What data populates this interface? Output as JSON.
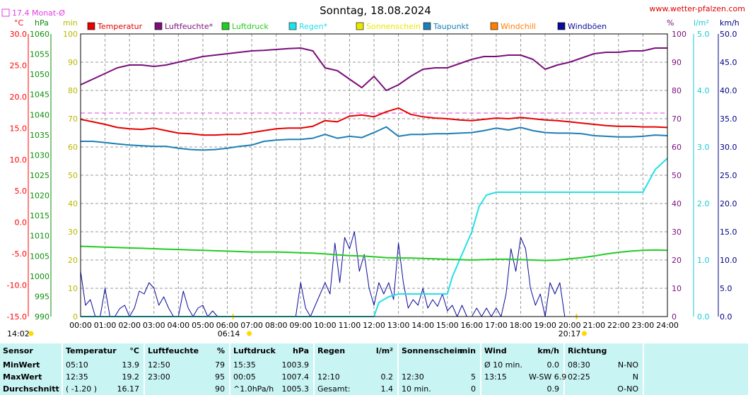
{
  "header": {
    "title": "Sonntag, 18.08.2024",
    "website": "www.wetter-pfalzen.com",
    "month_avg_label": "17.4 Monat-Ø"
  },
  "colors": {
    "temperature": "#e60000",
    "humidity": "#7a0f7a",
    "pressure": "#22cc22",
    "rain": "#22e0e8",
    "sunshine": "#e8e800",
    "dewpoint": "#1e7fb4",
    "windchill": "#ff7f00",
    "gusts": "#0a0a99",
    "month_avg_line": "#e040e0",
    "temp_axis": "#ff0000",
    "pressure_axis": "#0a8f0a",
    "sun_axis": "#b8b800",
    "humidity_axis": "#7a0f7a",
    "rain_axis": "#19c9d4",
    "wind_axis": "#000080",
    "stats_bg": "#c9f4f4"
  },
  "chart_data": {
    "type": "line",
    "x_unit": "time of day (hours)",
    "x_range": [
      0,
      24
    ],
    "x_ticks": [
      "00:00",
      "01:00",
      "02:00",
      "03:00",
      "04:00",
      "05:00",
      "06:00",
      "07:00",
      "08:00",
      "09:00",
      "10:00",
      "11:00",
      "12:00",
      "13:00",
      "14:00",
      "15:00",
      "16:00",
      "17:00",
      "18:00",
      "19:00",
      "20:00",
      "21:00",
      "22:00",
      "23:00",
      "24:00"
    ],
    "grid": true,
    "sunrise": "06:14",
    "sunset": "20:17",
    "current_time": "14:02",
    "axes": {
      "temperature": {
        "unit": "°C",
        "range": [
          -15,
          30
        ],
        "ticks": [
          "30.0",
          "25.0",
          "20.0",
          "15.0",
          "10.0",
          "5.0",
          "0.0",
          "-5.0",
          "-10.0",
          "-15.0"
        ]
      },
      "pressure": {
        "unit": "hPa",
        "range": [
          990,
          1060
        ],
        "ticks": [
          "1060",
          "1055",
          "1050",
          "1045",
          "1040",
          "1035",
          "1030",
          "1025",
          "1020",
          "1015",
          "1010",
          "1005",
          "1000",
          "995",
          "990"
        ]
      },
      "sunshine": {
        "unit": "min",
        "range": [
          0,
          100
        ],
        "ticks": [
          "100",
          "90",
          "80",
          "70",
          "60",
          "50",
          "40",
          "30",
          "20",
          "10",
          "0"
        ]
      },
      "humidity": {
        "unit": "%",
        "range": [
          0,
          100
        ],
        "ticks": [
          "100",
          "90",
          "80",
          "70",
          "60",
          "50",
          "40",
          "30",
          "20",
          "10",
          "0"
        ]
      },
      "rain": {
        "unit": "l/m²",
        "range": [
          0,
          5
        ],
        "ticks": [
          "5.0",
          "4.0",
          "3.0",
          "2.0",
          "1.0",
          "0.0"
        ]
      },
      "wind": {
        "unit": "km/h",
        "range": [
          0,
          50
        ],
        "ticks": [
          "50.0",
          "45.0",
          "40.0",
          "35.0",
          "30.0",
          "25.0",
          "20.0",
          "15.0",
          "10.0",
          "5.0",
          "0.0"
        ]
      }
    },
    "month_average_temperature": 17.4,
    "legend": [
      "Temperatur",
      "Luftfeuchte*",
      "Luftdruck",
      "Regen*",
      "Sonnenschein",
      "Taupunkt",
      "Windchill",
      "Windböen"
    ],
    "series": [
      {
        "name": "Temperatur",
        "axis": "temperature",
        "x": [
          0,
          0.5,
          1,
          1.5,
          2,
          2.5,
          3,
          3.5,
          4,
          4.5,
          5,
          5.5,
          6,
          6.5,
          7,
          7.5,
          8,
          8.5,
          9,
          9.5,
          10,
          10.5,
          11,
          11.5,
          12,
          12.5,
          13,
          13.5,
          14,
          14.5,
          15,
          15.5,
          16,
          16.5,
          17,
          17.5,
          18,
          18.5,
          19,
          19.5,
          20,
          20.5,
          21,
          21.5,
          22,
          22.5,
          23,
          23.5,
          24
        ],
        "y": [
          16.4,
          16.0,
          15.6,
          15.1,
          14.9,
          14.8,
          15.0,
          14.6,
          14.2,
          14.1,
          13.9,
          13.9,
          14.0,
          14.0,
          14.3,
          14.6,
          14.9,
          15.0,
          15.0,
          15.3,
          16.2,
          16.0,
          16.9,
          17.1,
          16.8,
          17.6,
          18.2,
          17.2,
          16.8,
          16.6,
          16.5,
          16.3,
          16.2,
          16.4,
          16.6,
          16.5,
          16.7,
          16.5,
          16.3,
          16.2,
          16.0,
          15.8,
          15.6,
          15.4,
          15.3,
          15.3,
          15.2,
          15.2,
          15.1
        ]
      },
      {
        "name": "Luftfeuchte*",
        "axis": "humidity",
        "x": [
          0,
          0.5,
          1,
          1.5,
          2,
          2.5,
          3,
          3.5,
          4,
          4.5,
          5,
          5.5,
          6,
          6.5,
          7,
          7.5,
          8,
          8.5,
          9,
          9.5,
          10,
          10.5,
          11,
          11.5,
          12,
          12.5,
          13,
          13.5,
          14,
          14.5,
          15,
          15.5,
          16,
          16.5,
          17,
          17.5,
          18,
          18.5,
          19,
          19.5,
          20,
          20.5,
          21,
          21.5,
          22,
          22.5,
          23,
          23.5,
          24
        ],
        "y": [
          82,
          84,
          86,
          88,
          89,
          89,
          88.5,
          89,
          90,
          91,
          92,
          92.5,
          93,
          93.5,
          94,
          94.2,
          94.5,
          94.8,
          95,
          94,
          88,
          87,
          84,
          81,
          85,
          80,
          82,
          85,
          87.5,
          88,
          88,
          89.5,
          91,
          92,
          92,
          92.5,
          92.5,
          91,
          87.5,
          89,
          90,
          91.5,
          93,
          93.5,
          93.5,
          94,
          94,
          95,
          95
        ]
      },
      {
        "name": "Luftdruck",
        "axis": "pressure",
        "x": [
          0,
          0.5,
          1,
          1.5,
          2,
          2.5,
          3,
          3.5,
          4,
          4.5,
          5,
          5.5,
          6,
          6.5,
          7,
          7.5,
          8,
          8.5,
          9,
          9.5,
          10,
          10.5,
          11,
          11.5,
          12,
          12.5,
          13,
          13.5,
          14,
          14.5,
          15,
          15.5,
          16,
          16.5,
          17,
          17.5,
          18,
          18.5,
          19,
          19.5,
          20,
          20.5,
          21,
          21.5,
          22,
          22.5,
          23,
          23.5,
          24
        ],
        "y": [
          1007.4,
          1007.3,
          1007.2,
          1007.1,
          1007.0,
          1006.9,
          1006.8,
          1006.7,
          1006.6,
          1006.5,
          1006.4,
          1006.3,
          1006.2,
          1006.1,
          1006.0,
          1006.0,
          1006.0,
          1005.9,
          1005.8,
          1005.7,
          1005.5,
          1005.3,
          1005.1,
          1005.0,
          1004.8,
          1004.6,
          1004.5,
          1004.5,
          1004.4,
          1004.3,
          1004.2,
          1004.1,
          1004.0,
          1004.1,
          1004.2,
          1004.2,
          1004.1,
          1004.0,
          1003.9,
          1004.0,
          1004.3,
          1004.6,
          1005.0,
          1005.5,
          1005.9,
          1006.2,
          1006.4,
          1006.5,
          1006.4
        ]
      },
      {
        "name": "Regen*",
        "axis": "rain",
        "x": [
          0,
          12,
          12.2,
          12.6,
          13,
          14,
          15,
          15.2,
          15.5,
          16,
          16.3,
          16.6,
          17,
          17.5,
          18,
          19,
          20,
          21,
          22,
          23,
          23.5,
          24
        ],
        "y": [
          0,
          0,
          0.25,
          0.35,
          0.4,
          0.4,
          0.4,
          0.7,
          1.0,
          1.5,
          1.95,
          2.15,
          2.2,
          2.2,
          2.2,
          2.2,
          2.2,
          2.2,
          2.2,
          2.2,
          2.6,
          2.8
        ]
      },
      {
        "name": "Taupunkt",
        "axis": "temperature",
        "x": [
          0,
          0.5,
          1,
          1.5,
          2,
          2.5,
          3,
          3.5,
          4,
          4.5,
          5,
          5.5,
          6,
          6.5,
          7,
          7.5,
          8,
          8.5,
          9,
          9.5,
          10,
          10.5,
          11,
          11.5,
          12,
          12.5,
          13,
          13.5,
          14,
          14.5,
          15,
          15.5,
          16,
          16.5,
          17,
          17.5,
          18,
          18.5,
          19,
          19.5,
          20,
          20.5,
          21,
          21.5,
          22,
          22.5,
          23,
          23.5,
          24
        ],
        "y": [
          12.9,
          12.9,
          12.7,
          12.5,
          12.3,
          12.2,
          12.1,
          12.1,
          11.8,
          11.6,
          11.5,
          11.6,
          11.8,
          12.1,
          12.3,
          12.9,
          13.1,
          13.2,
          13.2,
          13.4,
          14.0,
          13.4,
          13.7,
          13.5,
          14.3,
          15.2,
          13.7,
          14.0,
          14.0,
          14.1,
          14.1,
          14.2,
          14.3,
          14.6,
          15.0,
          14.7,
          15.1,
          14.6,
          14.3,
          14.2,
          14.2,
          14.1,
          13.8,
          13.7,
          13.6,
          13.6,
          13.7,
          13.9,
          13.8
        ]
      },
      {
        "name": "Windböen",
        "axis": "wind",
        "x": [
          0,
          0.2,
          0.4,
          0.6,
          0.8,
          1,
          1.2,
          1.4,
          1.6,
          1.8,
          2,
          2.2,
          2.4,
          2.6,
          2.8,
          3,
          3.2,
          3.4,
          3.6,
          3.8,
          4,
          4.2,
          4.4,
          4.6,
          4.8,
          5,
          5.2,
          5.4,
          5.6,
          5.8,
          6,
          8.8,
          9,
          9.2,
          9.4,
          9.6,
          9.8,
          10,
          10.2,
          10.4,
          10.6,
          10.8,
          11,
          11.2,
          11.4,
          11.6,
          11.8,
          12,
          12.2,
          12.4,
          12.6,
          12.8,
          13,
          13.2,
          13.4,
          13.6,
          13.8,
          14,
          14.2,
          14.4,
          14.6,
          14.8,
          15,
          15.2,
          15.4,
          15.6,
          15.8,
          16,
          16.2,
          16.4,
          16.6,
          16.8,
          17,
          17.2,
          17.4,
          17.6,
          17.8,
          18,
          18.2,
          18.4,
          18.6,
          18.8,
          19,
          19.2,
          19.4,
          19.6,
          19.8,
          24
        ],
        "y": [
          8,
          2,
          3,
          0,
          0,
          5,
          0,
          0,
          1.4,
          2,
          0,
          1.5,
          4.5,
          4,
          6,
          5,
          2,
          3.5,
          1.5,
          0,
          0,
          4.5,
          1.5,
          0,
          1.5,
          2,
          0,
          1,
          0,
          0,
          0,
          0,
          6,
          1.5,
          0,
          2,
          4,
          6,
          4,
          13,
          6,
          14,
          12,
          15,
          8,
          11,
          5,
          2,
          6,
          4,
          6,
          3,
          13,
          6,
          1.5,
          3,
          2,
          5,
          1.5,
          3,
          1.8,
          4,
          1,
          2,
          0,
          2,
          0,
          0,
          1.5,
          0,
          1.5,
          0,
          1.5,
          0,
          4,
          12,
          8,
          14,
          12,
          5,
          2,
          4,
          0,
          6,
          4,
          6,
          0,
          0
        ]
      }
    ]
  },
  "stats": {
    "headers": {
      "sensor": "Sensor",
      "temp": "Temperatur",
      "temp_unit": "°C",
      "hum": "Luftfeuchte",
      "hum_unit": "%",
      "press": "Luftdruck",
      "press_unit": "hPa",
      "rain": "Regen",
      "rain_unit": "l/m²",
      "sun": "Sonnenschein",
      "sun_unit": "min",
      "wind": "Wind",
      "wind_unit": "km/h",
      "dir": "Richtung"
    },
    "rows": [
      {
        "label": "MinWert",
        "t_time": "05:10",
        "t_val": "13.9",
        "h_time": "12:50",
        "h_val": "79",
        "p_time": "15:35",
        "p_val": "1003.9",
        "r_time": "",
        "r_val": "",
        "s_time": "",
        "s_val": "",
        "w_time": "Ø 10 min.",
        "w_val": "0.0",
        "d_time": "08:30",
        "d_val": "N-NO"
      },
      {
        "label": "MaxWert",
        "t_time": "12:35",
        "t_val": "19.2",
        "h_time": "23:00",
        "h_val": "95",
        "p_time": "00:05",
        "p_val": "1007.4",
        "r_time": "12:10",
        "r_val": "0.2",
        "s_time": "12:30",
        "s_val": "5",
        "w_time": "13:15",
        "w_val": "W-SW 6.9",
        "d_time": "02:25",
        "d_val": "N"
      },
      {
        "label": "Durchschnitt",
        "t_time": "( -1.20 )",
        "t_val": "16.17",
        "h_time": "",
        "h_val": "90",
        "p_time": "^1.0hPa/h",
        "p_val": "1005.3",
        "r_time": "Gesamt:",
        "r_val": "1.4",
        "s_time": "10 min.",
        "s_val": "0",
        "w_time": "",
        "w_val": "0.9",
        "d_time": "",
        "d_val": "O-NO"
      }
    ]
  }
}
